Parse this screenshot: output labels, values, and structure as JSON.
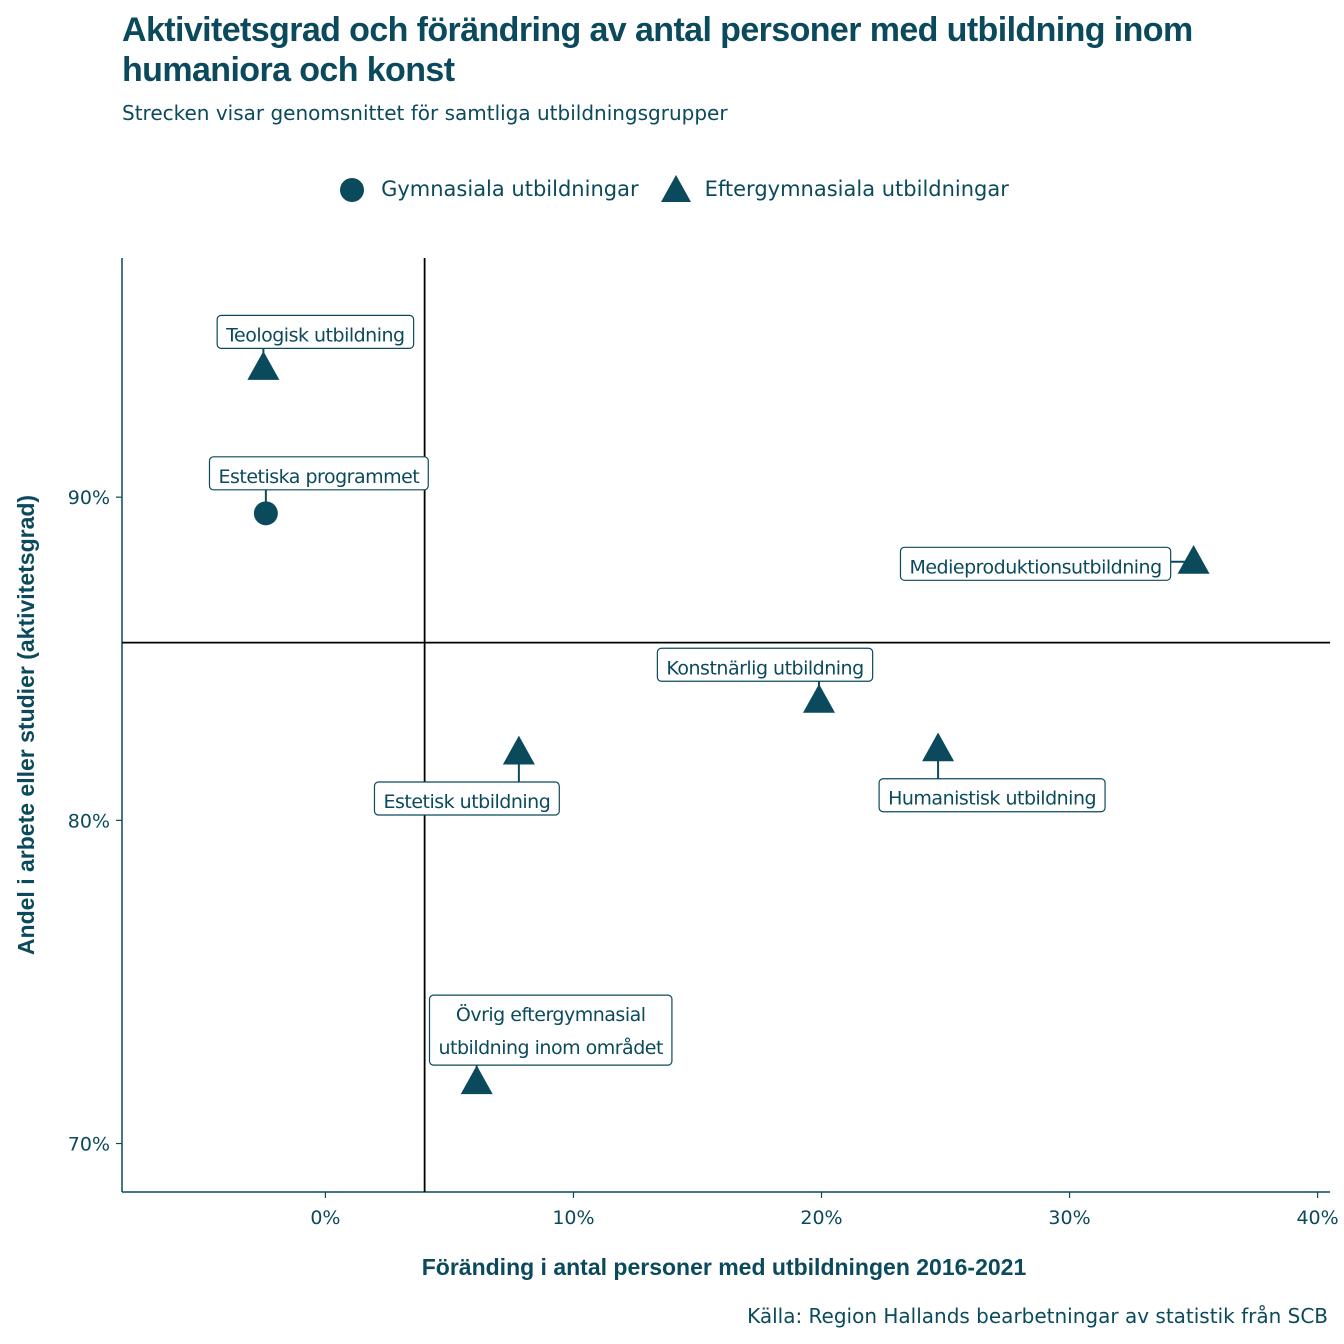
{
  "title": "Aktivitetsgrad och förändring av antal personer med utbildning inom humaniora och konst",
  "subtitle": "Strecken visar genomsnittet för samtliga utbildningsgrupper",
  "source": "Källa: Region Hallands bearbetningar av statistik från SCB",
  "colors": {
    "marker": "#0b4a5c",
    "text": "#0b4a5c",
    "lines": "#000000"
  },
  "legend": [
    {
      "shape": "circle",
      "label": "Gymnasiala utbildningar"
    },
    {
      "shape": "triangle",
      "label": "Eftergymnasiala utbildningar"
    }
  ],
  "chart_data": {
    "type": "scatter",
    "xlabel": "Föränding i antal personer med utbildningen 2016-2021",
    "ylabel": "Andel i arbete eller studier (aktivitetsgrad)",
    "xlim": [
      -8.2,
      40.5
    ],
    "ylim": [
      68.5,
      97.4
    ],
    "x_ticks": [
      0,
      10,
      20,
      30,
      40
    ],
    "x_tick_labels": [
      "0%",
      "10%",
      "20%",
      "30%",
      "40%"
    ],
    "y_ticks": [
      70,
      80,
      90
    ],
    "y_tick_labels": [
      "70%",
      "80%",
      "90%"
    ],
    "reference_lines": {
      "x": 4.0,
      "y": 85.5
    },
    "grid": false,
    "legend_position": "top",
    "points": [
      {
        "label": "Teologisk utbildning",
        "shape": "triangle",
        "x": -2.5,
        "y": 94.0,
        "label_lines": [
          "Teologisk utbildning"
        ]
      },
      {
        "label": "Estetiska programmet",
        "shape": "circle",
        "x": -2.4,
        "y": 89.5,
        "label_lines": [
          "Estetiska programmet"
        ]
      },
      {
        "label": "Medieproduktionsutbildning",
        "shape": "triangle",
        "x": 35.0,
        "y": 88.0,
        "label_lines": [
          "Medieproduktionsutbildning"
        ]
      },
      {
        "label": "Konstnärlig utbildning",
        "shape": "triangle",
        "x": 19.9,
        "y": 83.7,
        "label_lines": [
          "Konstnärlig utbildning"
        ]
      },
      {
        "label": "Estetisk utbildning",
        "shape": "triangle",
        "x": 7.8,
        "y": 82.1,
        "label_lines": [
          "Estetisk utbildning"
        ]
      },
      {
        "label": "Humanistisk utbildning",
        "shape": "triangle",
        "x": 24.7,
        "y": 82.2,
        "label_lines": [
          "Humanistisk utbildning"
        ]
      },
      {
        "label": "Övrig eftergymnasial utbildning inom området",
        "shape": "triangle",
        "x": 6.1,
        "y": 71.9,
        "label_lines": [
          "Övrig eftergymnasial",
          "utbildning inom området"
        ]
      }
    ]
  }
}
